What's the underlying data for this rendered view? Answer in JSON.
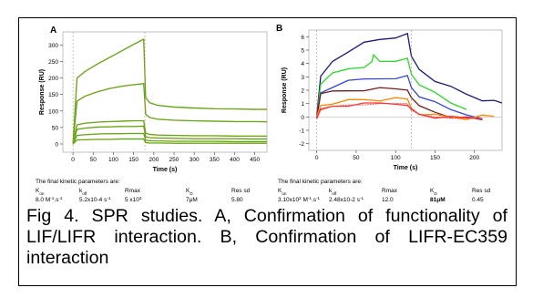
{
  "caption": "Fig 4.  SPR studies. A, Confirmation of functionality of LIF/LIFR interaction. B, Confirmation of LIFR-EC359 interaction",
  "chart_data": [
    {
      "type": "line",
      "panel": "A",
      "xlabel": "Time (s)",
      "ylabel": "Response (RU)",
      "xlim": [
        -25,
        480
      ],
      "ylim": [
        -25,
        340
      ],
      "x_ticks": [
        0,
        50,
        100,
        150,
        200,
        250,
        300,
        350,
        400,
        450
      ],
      "y_ticks": [
        0,
        50,
        100,
        150,
        200,
        250,
        300
      ],
      "grid": false,
      "colors": {
        "fit": "#ff8c1a",
        "measured": "#22bb22"
      },
      "series": [
        {
          "x": [
            0,
            10,
            30,
            60,
            90,
            120,
            150,
            175,
            180,
            190,
            210,
            250,
            300,
            350,
            400,
            450,
            480
          ],
          "values": [
            0,
            200,
            220,
            242,
            262,
            282,
            302,
            318,
            140,
            125,
            117,
            112,
            109,
            107,
            106,
            105,
            105
          ]
        },
        {
          "x": [
            0,
            10,
            30,
            60,
            90,
            120,
            150,
            175,
            180,
            190,
            210,
            250,
            300,
            350,
            400,
            450,
            480
          ],
          "values": [
            0,
            130,
            145,
            158,
            168,
            175,
            180,
            183,
            90,
            80,
            75,
            72,
            70,
            69,
            68,
            68,
            67
          ]
        },
        {
          "x": [
            0,
            10,
            30,
            60,
            90,
            120,
            150,
            175,
            180,
            190,
            210,
            250,
            300,
            350,
            400,
            450,
            480
          ],
          "values": [
            0,
            58,
            63,
            66,
            68,
            69,
            70,
            70,
            33,
            29,
            27,
            26,
            25,
            25,
            24,
            24,
            24
          ]
        },
        {
          "x": [
            0,
            10,
            30,
            60,
            90,
            120,
            150,
            175,
            180,
            190,
            210,
            250,
            300,
            350,
            400,
            450,
            480
          ],
          "values": [
            0,
            44,
            48,
            51,
            52,
            53,
            53,
            54,
            22,
            19,
            18,
            17,
            16,
            16,
            16,
            15,
            15
          ]
        },
        {
          "x": [
            0,
            10,
            30,
            60,
            90,
            120,
            150,
            175,
            180,
            190,
            210,
            250,
            300,
            350,
            400,
            450,
            480
          ],
          "values": [
            0,
            26,
            28,
            30,
            31,
            31,
            32,
            32,
            11,
            10,
            9,
            8,
            8,
            8,
            7,
            7,
            7
          ]
        },
        {
          "x": [
            0,
            10,
            30,
            60,
            90,
            120,
            150,
            175,
            180,
            190,
            210,
            250,
            300,
            350,
            400,
            450,
            480
          ],
          "values": [
            0,
            12,
            13,
            14,
            14,
            15,
            15,
            15,
            4,
            3,
            3,
            2,
            2,
            2,
            2,
            2,
            2
          ]
        }
      ],
      "kinetics_title": "The final kinetic parameters are:",
      "kinetics_headers": [
        {
          "main": "K",
          "sub": "on"
        },
        {
          "main": "k",
          "sub": "off"
        },
        {
          "main": "Rmax",
          "sub": ""
        },
        {
          "main": "K",
          "sub": "D"
        },
        {
          "main": "Res sd",
          "sub": ""
        }
      ],
      "kinetics_values": [
        {
          "main": "8.0 M",
          "sup": "-1",
          "tail": ".s",
          "tail_sup": "-1"
        },
        {
          "main": "5.2x10-4 s",
          "sup": "-1",
          "tail": "",
          "tail_sup": ""
        },
        {
          "main": "5 x10",
          "sup": "3",
          "tail": "",
          "tail_sup": ""
        },
        {
          "main": "7μM",
          "sup": "",
          "tail": "",
          "tail_sup": ""
        },
        {
          "main": "5.80",
          "sup": "",
          "tail": "",
          "tail_sup": ""
        }
      ]
    },
    {
      "type": "line",
      "panel": "B",
      "xlabel": "Time (s)",
      "ylabel": "Response (RU)",
      "xlim": [
        -10,
        235
      ],
      "ylim": [
        -2.5,
        6.5
      ],
      "x_ticks": [
        0,
        50,
        100,
        150,
        200
      ],
      "y_ticks": [
        -2,
        -1,
        0,
        1,
        2,
        3,
        4,
        5,
        6
      ],
      "grid": false,
      "colors": {
        "fit": "#ff3333"
      },
      "series": [
        {
          "color": "#1a1a80",
          "x": [
            0,
            5,
            20,
            40,
            60,
            80,
            100,
            115,
            120,
            130,
            150,
            170,
            190,
            210,
            225,
            235
          ],
          "values": [
            0,
            3.0,
            4.2,
            5.0,
            5.5,
            5.8,
            6.0,
            6.1,
            4.5,
            3.6,
            2.8,
            2.2,
            1.7,
            1.3,
            1.1,
            1.0
          ]
        },
        {
          "color": "#22dd22",
          "x": [
            0,
            5,
            20,
            40,
            60,
            70,
            72,
            80,
            100,
            115,
            120,
            130,
            150,
            170,
            190
          ],
          "values": [
            0,
            2.6,
            3.2,
            3.6,
            3.8,
            4.0,
            4.6,
            4.2,
            4.3,
            4.3,
            3.2,
            2.5,
            1.7,
            1.0,
            0.6
          ]
        },
        {
          "color": "#3344dd",
          "x": [
            0,
            5,
            20,
            40,
            60,
            80,
            100,
            115,
            120,
            130,
            150,
            170,
            190,
            210
          ],
          "values": [
            0,
            1.8,
            2.3,
            2.6,
            2.8,
            2.9,
            3.0,
            3.0,
            2.2,
            1.6,
            1.0,
            0.5,
            0.2,
            0.0
          ]
        },
        {
          "color": "#7a1a1a",
          "x": [
            0,
            5,
            20,
            40,
            60,
            80,
            100,
            115,
            120,
            130,
            150,
            170,
            190,
            210
          ],
          "values": [
            0,
            1.6,
            1.9,
            2.0,
            2.1,
            2.1,
            2.1,
            2.1,
            1.3,
            0.8,
            0.4,
            0.1,
            -0.1,
            -0.2
          ]
        },
        {
          "color": "#ff8800",
          "x": [
            0,
            5,
            20,
            40,
            60,
            80,
            100,
            115,
            120,
            130,
            150,
            170,
            190,
            210,
            225
          ],
          "values": [
            0,
            0.9,
            1.1,
            1.2,
            1.3,
            1.3,
            1.3,
            1.3,
            0.7,
            0.3,
            0.1,
            0.0,
            -0.1,
            0.0,
            0.0
          ]
        },
        {
          "color": "#ff3333",
          "x": [
            0,
            5,
            20,
            40,
            60,
            80,
            100,
            115,
            120,
            130,
            150,
            170,
            190,
            210
          ],
          "values": [
            0,
            0.5,
            0.8,
            0.9,
            0.9,
            1.0,
            1.0,
            1.0,
            0.5,
            0.2,
            0.0,
            -0.1,
            -0.1,
            -0.1
          ]
        }
      ],
      "kinetics_title": "The final kinetic parameters are:",
      "kinetics_headers": [
        {
          "main": "K",
          "sub": "on"
        },
        {
          "main": "k",
          "sub": "off"
        },
        {
          "main": "Rmax",
          "sub": ""
        },
        {
          "main": "K",
          "sub": "D"
        },
        {
          "main": "Res sd",
          "sub": ""
        }
      ],
      "kinetics_values": [
        {
          "main": "3.10x10",
          "sup": "2",
          "tail": " M",
          "tail_sup": "-1",
          "tail2": ".s",
          "tail2_sup": "-1"
        },
        {
          "main": "2.48x10-2 s",
          "sup": "-1",
          "tail": "",
          "tail_sup": ""
        },
        {
          "main": "12.0",
          "sup": "",
          "tail": "",
          "tail_sup": ""
        },
        {
          "main": "81μM",
          "sup": "",
          "tail": "",
          "tail_sup": "",
          "bold": true
        },
        {
          "main": "0.45",
          "sup": "",
          "tail": "",
          "tail_sup": ""
        }
      ]
    }
  ]
}
